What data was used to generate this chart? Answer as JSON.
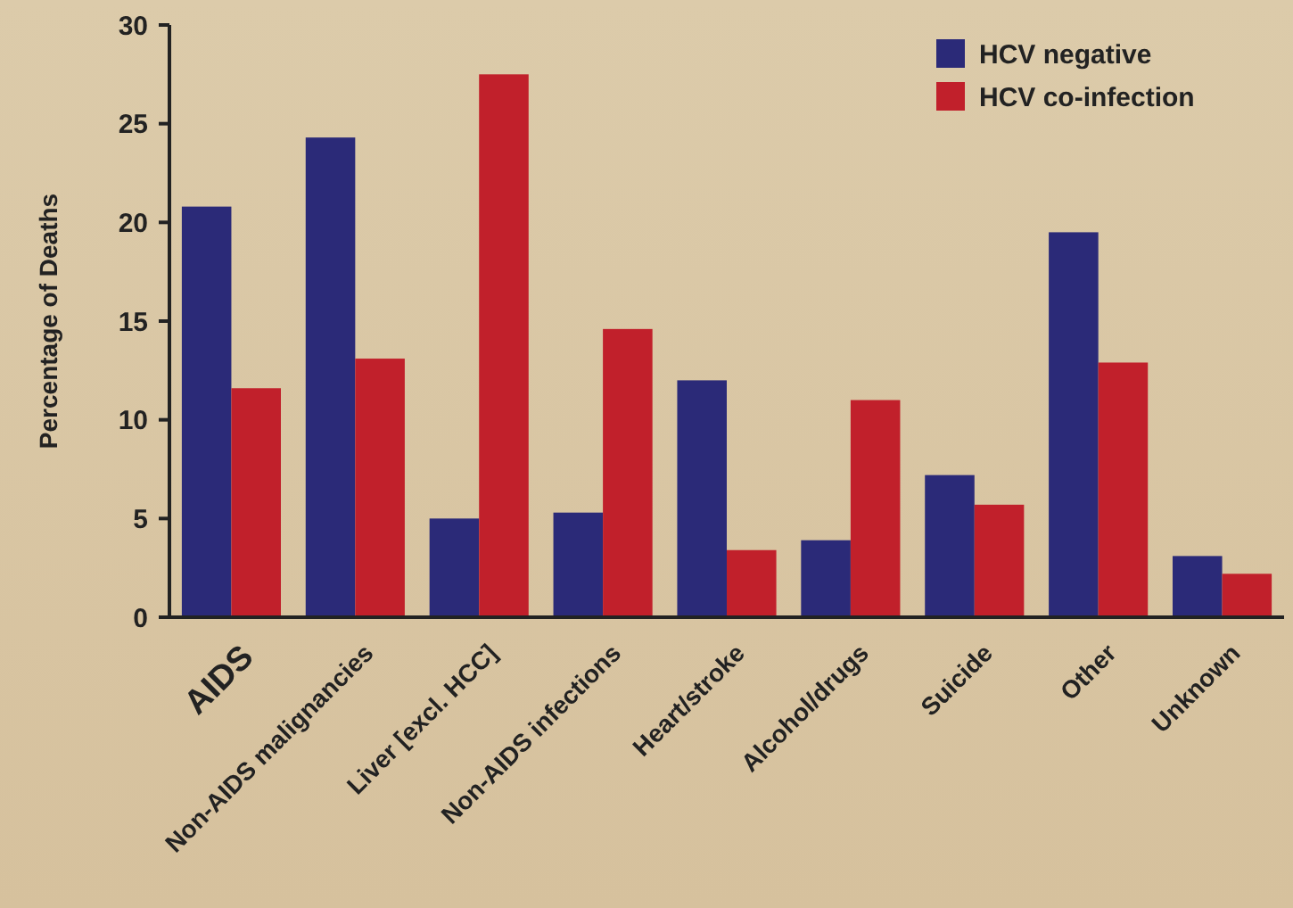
{
  "chart_data": {
    "type": "bar",
    "ylabel": "Percentage of Deaths",
    "categories": [
      "AIDS",
      "Non-AIDS malignancies",
      "Liver [excl. HCC]",
      "Non-AIDS infections",
      "Heart/stroke",
      "Alcohol/drugs",
      "Suicide",
      "Other",
      "Unknown"
    ],
    "series": [
      {
        "name": "HCV negative",
        "color": "#2b2a78",
        "values": [
          20.8,
          24.3,
          5.0,
          5.3,
          12.0,
          3.9,
          7.2,
          19.5,
          3.1
        ]
      },
      {
        "name": "HCV co-infection",
        "color": "#c1202b",
        "values": [
          11.6,
          13.1,
          27.5,
          14.6,
          3.4,
          11.0,
          5.7,
          12.9,
          2.2
        ]
      }
    ],
    "ylim": [
      0,
      30
    ],
    "yticks": [
      0,
      5,
      10,
      15,
      20,
      25,
      30
    ],
    "legend": "top right",
    "grid": false
  }
}
